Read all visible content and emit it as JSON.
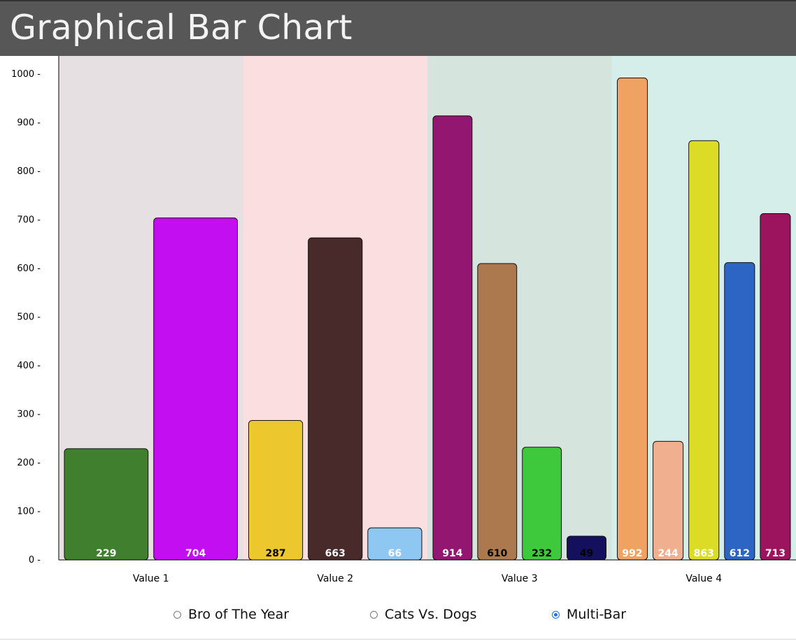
{
  "header": {
    "title": "Graphical Bar Chart"
  },
  "chart_data": {
    "type": "bar",
    "ylim": [
      0,
      1000
    ],
    "yticks": [
      "0 -",
      "100 -",
      "200 -",
      "300 -",
      "400 -",
      "500 -",
      "600 -",
      "700 -",
      "800 -",
      "900 -",
      "1000 -"
    ],
    "groups": [
      {
        "label": "Value 1",
        "bg": "#e6e0e2",
        "bars": [
          {
            "value": 229,
            "color": "#3f7f2e",
            "text_color": "#ffffff"
          },
          {
            "value": 704,
            "color": "#c40ef2",
            "text_color": "#ffffff"
          }
        ]
      },
      {
        "label": "Value 2",
        "bg": "#fbdfe0",
        "bars": [
          {
            "value": 287,
            "color": "#ecc82e",
            "text_color": "#000000"
          },
          {
            "value": 663,
            "color": "#482a2b",
            "text_color": "#ffffff"
          },
          {
            "value": 66,
            "color": "#8ec8f2",
            "text_color": "#ffffff"
          }
        ]
      },
      {
        "label": "Value 3",
        "bg": "#d5e5dd",
        "bars": [
          {
            "value": 914,
            "color": "#931771",
            "text_color": "#ffffff"
          },
          {
            "value": 610,
            "color": "#ac784d",
            "text_color": "#000000"
          },
          {
            "value": 232,
            "color": "#3ec83c",
            "text_color": "#000000"
          },
          {
            "value": 49,
            "color": "#15105e",
            "text_color": "#000000"
          }
        ]
      },
      {
        "label": "Value 4",
        "bg": "#d5eeea",
        "bars": [
          {
            "value": 992,
            "color": "#f0a262",
            "text_color": "#ffffff"
          },
          {
            "value": 244,
            "color": "#f0b090",
            "text_color": "#ffffff"
          },
          {
            "value": 863,
            "color": "#dcdb26",
            "text_color": "#ffffff"
          },
          {
            "value": 612,
            "color": "#2c65c3",
            "text_color": "#ffffff"
          },
          {
            "value": 713,
            "color": "#9c135e",
            "text_color": "#ffffff"
          }
        ]
      }
    ]
  },
  "controls": {
    "options": [
      {
        "label": "Bro of The Year",
        "checked": false
      },
      {
        "label": "Cats Vs. Dogs",
        "checked": false
      },
      {
        "label": "Multi-Bar",
        "checked": true
      }
    ]
  }
}
